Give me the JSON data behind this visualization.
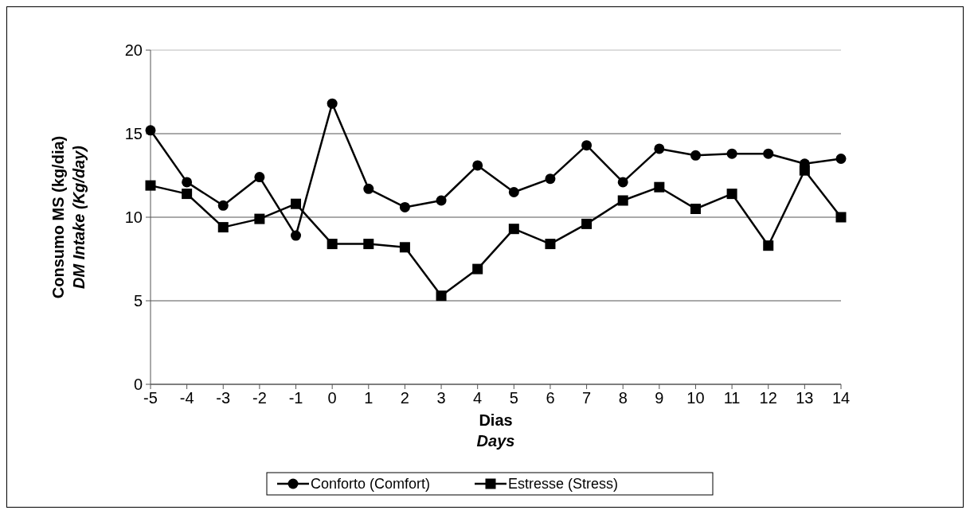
{
  "chart_data": {
    "type": "line",
    "xlabel": "Dias\nDays",
    "ylabel": "Consumo MS (kg/dia)\nDM Intake (Kg/day)",
    "x": [
      -5,
      -4,
      -3,
      -2,
      -1,
      0,
      1,
      2,
      3,
      4,
      5,
      6,
      7,
      8,
      9,
      10,
      11,
      12,
      13,
      14
    ],
    "series": [
      {
        "name": "Conforto (Comfort)",
        "color": "#000000",
        "marker": "circle",
        "values": [
          15.2,
          12.1,
          10.7,
          12.4,
          8.9,
          16.8,
          11.7,
          10.6,
          11.0,
          13.1,
          11.5,
          12.3,
          14.3,
          12.1,
          14.1,
          13.7,
          13.8,
          13.8,
          13.2,
          13.5
        ]
      },
      {
        "name": "Estresse (Stress)",
        "color": "#000000",
        "marker": "square",
        "values": [
          11.9,
          11.4,
          9.4,
          9.9,
          10.8,
          8.4,
          8.4,
          8.2,
          5.3,
          6.9,
          9.3,
          8.4,
          9.6,
          11.0,
          11.8,
          10.5,
          11.4,
          8.3,
          12.8,
          10.0
        ]
      }
    ],
    "xlim": [
      -5,
      14
    ],
    "xticks": [
      -5,
      -4,
      -3,
      -2,
      -1,
      0,
      1,
      2,
      3,
      4,
      5,
      6,
      7,
      8,
      9,
      10,
      11,
      12,
      13,
      14
    ],
    "ylim": [
      0,
      20
    ],
    "yticks": [
      0,
      5,
      10,
      15,
      20
    ],
    "grid": "y",
    "legend": "bottom",
    "line_style": "solid"
  }
}
